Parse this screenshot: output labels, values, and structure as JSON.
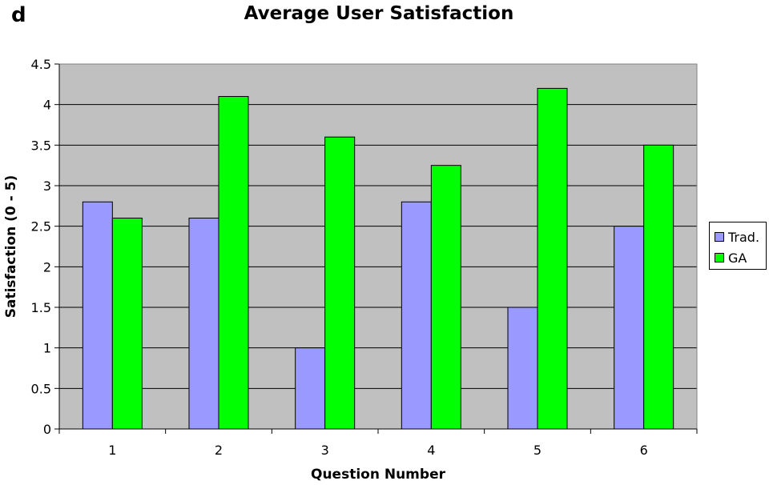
{
  "panel_label": "d",
  "colors": {
    "plot_bg": "#c0c0c0",
    "trad": "#9999ff",
    "ga": "#00ff00"
  },
  "chart_data": {
    "type": "bar",
    "title": "Average User Satisfaction",
    "xlabel": "Question Number",
    "ylabel": "Satisfaction (0 - 5)",
    "categories": [
      "1",
      "2",
      "3",
      "4",
      "5",
      "6"
    ],
    "series": [
      {
        "name": "Trad.",
        "values": [
          2.8,
          2.6,
          1.0,
          2.8,
          1.5,
          2.5
        ]
      },
      {
        "name": "GA",
        "values": [
          2.6,
          4.1,
          3.6,
          3.25,
          4.2,
          3.5
        ]
      }
    ],
    "ylim": [
      0,
      4.5
    ],
    "yticks": [
      "0",
      "0.5",
      "1",
      "1.5",
      "2",
      "2.5",
      "3",
      "3.5",
      "4",
      "4.5"
    ],
    "grid": true,
    "legend_position": "right"
  }
}
